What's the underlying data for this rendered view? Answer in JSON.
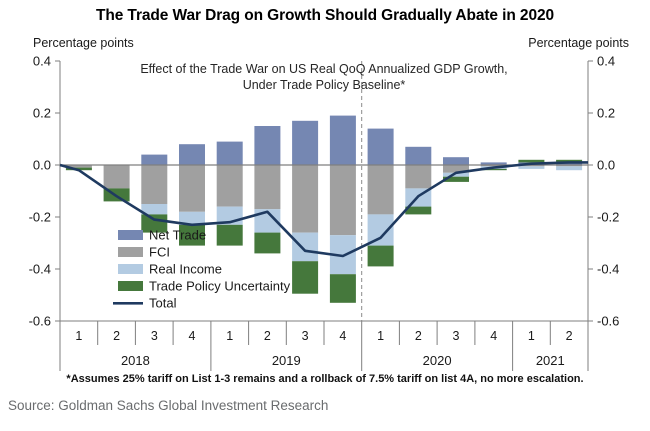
{
  "header": {
    "title": "The Trade War Drag on Growth Should Gradually Abate in 2020"
  },
  "axis_captions": {
    "left": "Percentage points",
    "right": "Percentage points"
  },
  "chart_data": {
    "type": "bar",
    "subtype": "stacked-bars-with-total-line",
    "title": "Effect of the Trade War on US Real QoQ Annualized GDP Growth, Under Trade Policy Baseline*",
    "title_lines": [
      "Effect of the Trade War on US Real QoQ Annualized GDP Growth,",
      "Under Trade Policy Baseline*"
    ],
    "ylim": [
      -0.6,
      0.4
    ],
    "ytick_interval": 0.2,
    "ytick_labels": [
      "0.4",
      "0.2",
      "0.0",
      "-0.2",
      "-0.4",
      "-0.6"
    ],
    "grid": false,
    "zero_line": true,
    "categories": [
      "2018 Q1",
      "2018 Q2",
      "2018 Q3",
      "2018 Q4",
      "2019 Q1",
      "2019 Q2",
      "2019 Q3",
      "2019 Q4",
      "2020 Q1",
      "2020 Q2",
      "2020 Q3",
      "2020 Q4",
      "2021 Q1",
      "2021 Q2"
    ],
    "x_axis": {
      "quarter_labels": [
        "1",
        "2",
        "3",
        "4",
        "1",
        "2",
        "3",
        "4",
        "1",
        "2",
        "3",
        "4",
        "1",
        "2"
      ],
      "year_groups": [
        {
          "label": "2018",
          "quarters": 4
        },
        {
          "label": "2019",
          "quarters": 4
        },
        {
          "label": "2020",
          "quarters": 4
        },
        {
          "label": "2021",
          "quarters": 2
        }
      ]
    },
    "forecast_divider": {
      "after_category_index": 7,
      "style": "dashed"
    },
    "legend": {
      "position": "inside-left"
    },
    "series": [
      {
        "name": "Net Trade",
        "type": "bar",
        "color": "#7587B2",
        "values": [
          0,
          0,
          0.04,
          0.08,
          0.09,
          0.15,
          0.17,
          0.19,
          0.14,
          0.07,
          0.03,
          0.01,
          0.01,
          0.01
        ]
      },
      {
        "name": "FCI",
        "type": "bar",
        "color": "#A0A0A0",
        "values": [
          -0.01,
          -0.09,
          -0.15,
          -0.18,
          -0.16,
          -0.17,
          -0.26,
          -0.27,
          -0.19,
          -0.09,
          -0.03,
          -0.005,
          -0.005,
          -0.005
        ]
      },
      {
        "name": "Real Income",
        "type": "bar",
        "color": "#B3CBE2",
        "values": [
          0,
          0,
          -0.04,
          -0.05,
          -0.07,
          -0.09,
          -0.11,
          -0.15,
          -0.12,
          -0.07,
          -0.015,
          -0.01,
          -0.01,
          -0.015
        ]
      },
      {
        "name": "Trade Policy Uncertainty",
        "type": "bar",
        "color": "#45783C",
        "values": [
          -0.01,
          -0.05,
          -0.07,
          -0.08,
          -0.08,
          -0.08,
          -0.125,
          -0.11,
          -0.08,
          -0.03,
          -0.02,
          -0.005,
          0.01,
          0.01
        ]
      },
      {
        "name": "Total",
        "type": "line",
        "color": "#1F3A60",
        "values": [
          -0.02,
          -0.12,
          -0.21,
          -0.23,
          -0.22,
          -0.18,
          -0.33,
          -0.35,
          -0.28,
          -0.12,
          -0.03,
          -0.01,
          0.005,
          0.01
        ],
        "edge_start": 0.0,
        "edge_end": 0.01
      }
    ]
  },
  "footnote": {
    "text": "*Assumes 25% tariff on List 1-3 remains  and a rollback of 7.5% tariff on list 4A, no more escalation."
  },
  "source": {
    "text": "Source: Goldman Sachs Global Investment Research"
  }
}
